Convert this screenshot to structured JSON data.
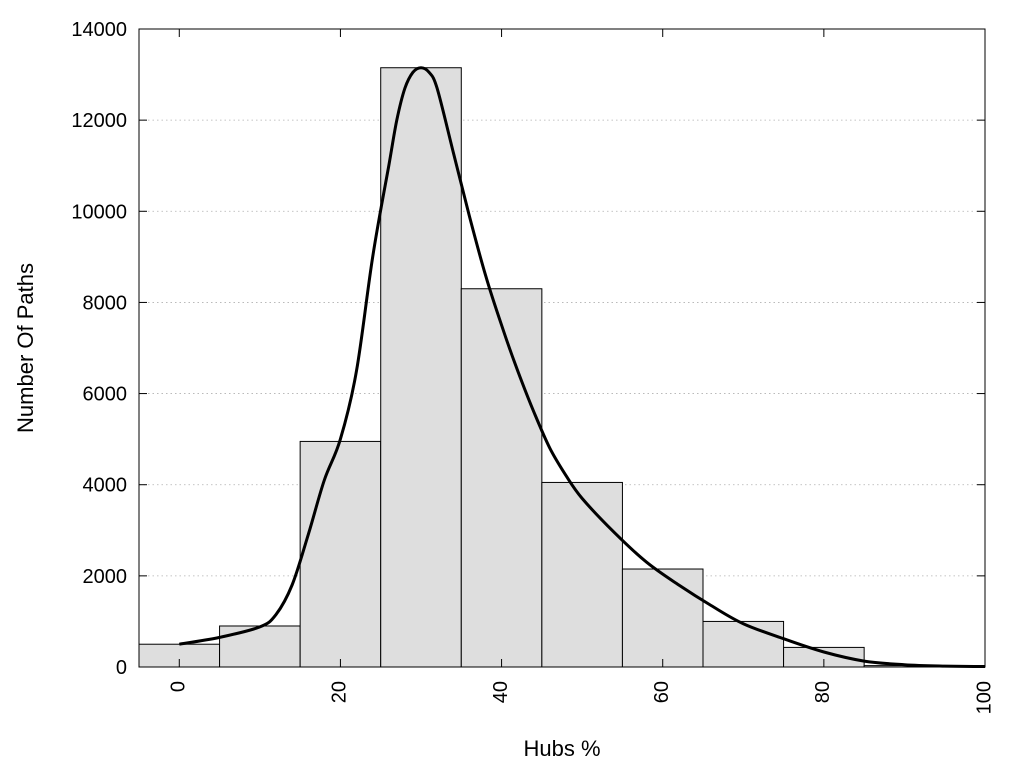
{
  "chart_data": {
    "type": "bar",
    "xlabel": "Hubs %",
    "ylabel": "Number Of Paths",
    "xlim": [
      -5,
      100
    ],
    "ylim": [
      0,
      14000
    ],
    "x_ticks": [
      "0",
      "20",
      "40",
      "60",
      "80",
      "100"
    ],
    "y_ticks": [
      "0",
      "2000",
      "4000",
      "6000",
      "8000",
      "10000",
      "12000",
      "14000"
    ],
    "grid": "horizontal dotted",
    "bin_width": 10,
    "bins": [
      {
        "center": 0,
        "value": 500
      },
      {
        "center": 10,
        "value": 900
      },
      {
        "center": 20,
        "value": 4950
      },
      {
        "center": 30,
        "value": 13150
      },
      {
        "center": 40,
        "value": 8300
      },
      {
        "center": 50,
        "value": 4050
      },
      {
        "center": 60,
        "value": 2150
      },
      {
        "center": 70,
        "value": 1000
      },
      {
        "center": 80,
        "value": 430
      },
      {
        "center": 90,
        "value": 30
      }
    ],
    "fit_curve": {
      "x": [
        0,
        5,
        10,
        12,
        14,
        16,
        18,
        20,
        22,
        24,
        26,
        27,
        28,
        29,
        30,
        31,
        32,
        34,
        36,
        38,
        40,
        42,
        44,
        46,
        48,
        50,
        54,
        58,
        62,
        66,
        70,
        75,
        80,
        85,
        90,
        95,
        100
      ],
      "y": [
        500,
        650,
        880,
        1150,
        1800,
        2900,
        4100,
        5000,
        6500,
        9000,
        11000,
        12000,
        12700,
        13050,
        13150,
        13050,
        12700,
        11300,
        9900,
        8600,
        7500,
        6500,
        5600,
        4800,
        4200,
        3700,
        2950,
        2300,
        1800,
        1350,
        950,
        620,
        330,
        130,
        50,
        20,
        10
      ]
    }
  }
}
